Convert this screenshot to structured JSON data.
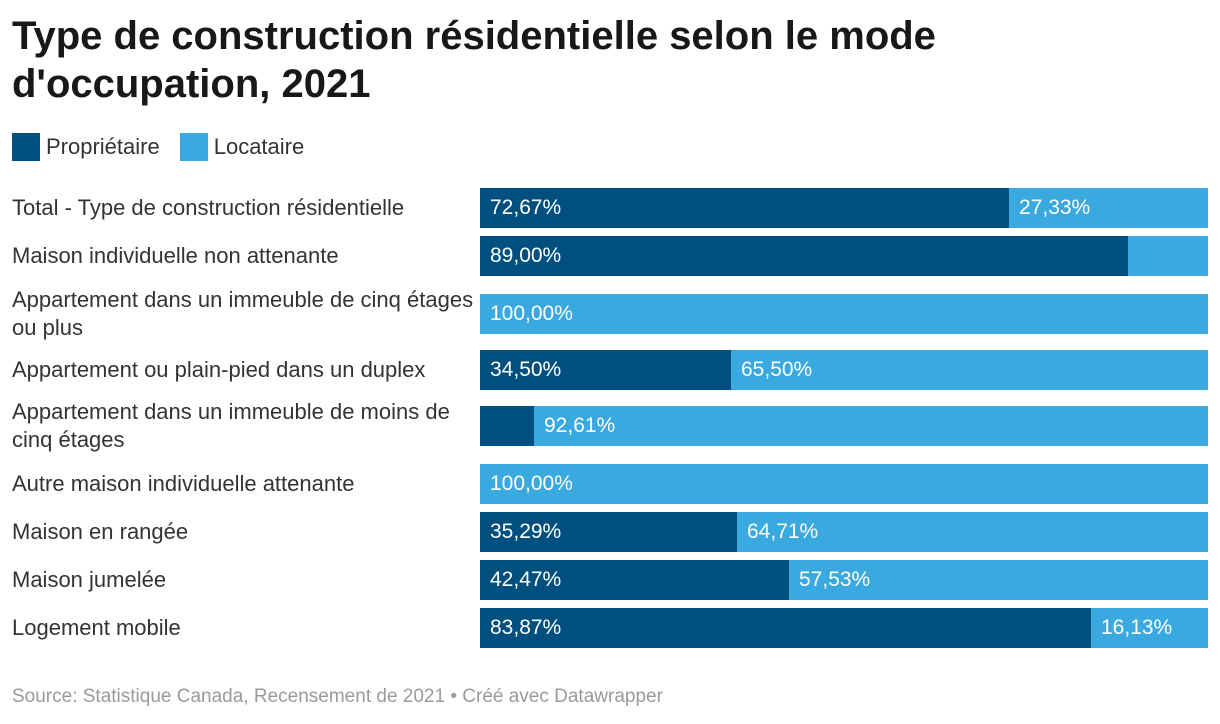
{
  "title": "Type de construction résidentielle selon le mode d'occupation, 2021",
  "legend": [
    {
      "label": "Propriétaire",
      "color": "#00507f"
    },
    {
      "label": "Locataire",
      "color": "#3aa9df"
    }
  ],
  "chart_data": {
    "type": "bar",
    "orientation": "horizontal",
    "stacked": true,
    "title": "Type de construction résidentielle selon le mode d'occupation, 2021",
    "xlim": [
      0,
      100
    ],
    "categories": [
      "Total - Type de construction résidentielle",
      "Maison individuelle non attenante",
      "Appartement dans un immeuble de cinq étages ou plus",
      "Appartement ou plain-pied dans un duplex",
      "Appartement dans un immeuble de moins de cinq étages",
      "Autre maison individuelle attenante",
      "Maison en rangée",
      "Maison jumelée",
      "Logement mobile"
    ],
    "series": [
      {
        "name": "Propriétaire",
        "color": "#00507f",
        "values": [
          72.67,
          89.0,
          0,
          34.5,
          7.39,
          0,
          35.29,
          42.47,
          83.87
        ],
        "labels": [
          "72,67%",
          "89,00%",
          "",
          "34,50%",
          "",
          "",
          "35,29%",
          "42,47%",
          "83,87%"
        ]
      },
      {
        "name": "Locataire",
        "color": "#3aa9df",
        "values": [
          27.33,
          11.0,
          100.0,
          65.5,
          92.61,
          100.0,
          64.71,
          57.53,
          16.13
        ],
        "labels": [
          "27,33%",
          "",
          "100,00%",
          "65,50%",
          "92,61%",
          "100,00%",
          "64,71%",
          "57,53%",
          "16,13%"
        ]
      }
    ],
    "legend": "top-left",
    "grid": false
  },
  "source": "Source: Statistique Canada, Recensement de 2021 • Créé avec Datawrapper"
}
